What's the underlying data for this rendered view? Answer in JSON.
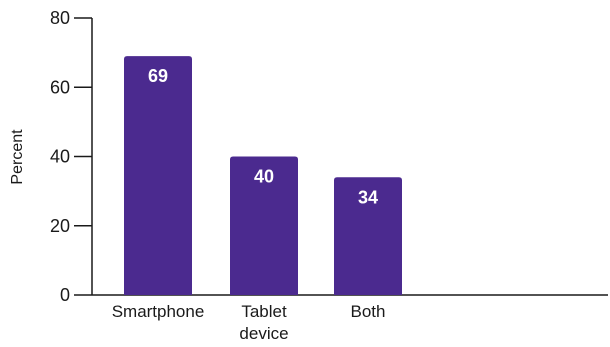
{
  "chart_data": {
    "type": "bar",
    "categories": [
      "Smartphone",
      "Tablet device",
      "Both"
    ],
    "category_lines": [
      [
        "Smartphone"
      ],
      [
        "Tablet",
        "device"
      ],
      [
        "Both"
      ]
    ],
    "values": [
      69,
      40,
      34
    ],
    "data_labels": [
      "69",
      "40",
      "34"
    ],
    "title": "",
    "xlabel": "",
    "ylabel": "Percent",
    "ylim": [
      0,
      80
    ],
    "yticks": [
      0,
      20,
      40,
      60,
      80
    ],
    "ytick_labels": [
      "0",
      "20",
      "40",
      "60",
      "80"
    ],
    "grid": false,
    "bar_color": "#4b2a8f",
    "label_color": "#ffffff",
    "axis_color": "#1a1a1a"
  }
}
